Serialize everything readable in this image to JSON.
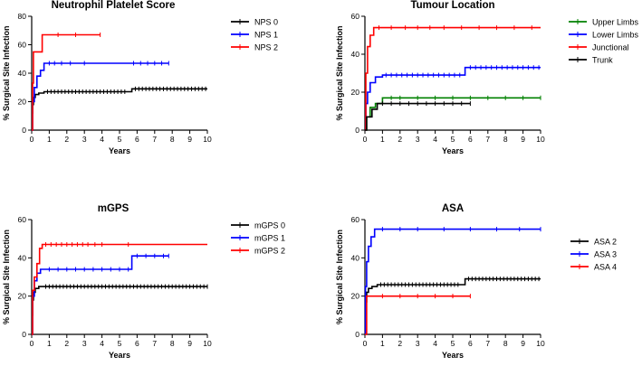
{
  "chart_data": [
    {
      "type": "line",
      "title": "Neutrophil Platelet Score",
      "xlabel": "Years",
      "ylabel": "% Surgical Site Infection",
      "xlim": [
        0,
        10
      ],
      "ylim": [
        0,
        80
      ],
      "xticks": [
        0,
        1,
        2,
        3,
        4,
        5,
        6,
        7,
        8,
        9,
        10
      ],
      "yticks": [
        0,
        20,
        40,
        60,
        80
      ],
      "legend": "right",
      "series": [
        {
          "name": "NPS 0",
          "color": "#000000",
          "steps": [
            [
              0,
              0
            ],
            [
              0.02,
              12
            ],
            [
              0.05,
              18
            ],
            [
              0.1,
              23
            ],
            [
              0.2,
              25
            ],
            [
              0.4,
              26
            ],
            [
              0.7,
              27
            ],
            [
              5.6,
              27
            ],
            [
              5.7,
              29
            ],
            [
              10,
              29
            ]
          ],
          "censored": [
            0.9,
            1.1,
            1.3,
            1.5,
            1.7,
            1.9,
            2.1,
            2.3,
            2.5,
            2.7,
            2.9,
            3.1,
            3.3,
            3.5,
            3.7,
            3.9,
            4.1,
            4.3,
            4.5,
            4.7,
            4.9,
            5.1,
            5.3,
            5.9,
            6.1,
            6.3,
            6.5,
            6.7,
            6.9,
            7.1,
            7.3,
            7.5,
            7.7,
            7.9,
            8.1,
            8.3,
            8.5,
            8.7,
            8.9,
            9.1,
            9.3,
            9.5,
            9.7,
            9.9
          ]
        },
        {
          "name": "NPS 1",
          "color": "#0000ff",
          "steps": [
            [
              0,
              0
            ],
            [
              0.05,
              20
            ],
            [
              0.15,
              30
            ],
            [
              0.3,
              38
            ],
            [
              0.5,
              42
            ],
            [
              0.7,
              47
            ],
            [
              7.8,
              47
            ]
          ],
          "censored": [
            1.0,
            1.3,
            1.7,
            2.2,
            3.0,
            5.8,
            6.2,
            6.6,
            7.0,
            7.4,
            7.8
          ]
        },
        {
          "name": "NPS 2",
          "color": "#ff0000",
          "steps": [
            [
              0,
              0
            ],
            [
              0.05,
              33
            ],
            [
              0.1,
              55
            ],
            [
              0.55,
              55
            ],
            [
              0.6,
              67
            ],
            [
              3.9,
              67
            ]
          ],
          "censored": [
            1.5,
            2.5,
            3.9
          ]
        }
      ]
    },
    {
      "type": "line",
      "title": "Tumour Location",
      "xlabel": "Years",
      "ylabel": "% Surgical Site Infection",
      "xlim": [
        0,
        10
      ],
      "ylim": [
        0,
        60
      ],
      "xticks": [
        0,
        1,
        2,
        3,
        4,
        5,
        6,
        7,
        8,
        9,
        10
      ],
      "yticks": [
        0,
        20,
        40,
        60
      ],
      "legend": "right",
      "series": [
        {
          "name": "Upper Limbs",
          "color": "#008000",
          "steps": [
            [
              0,
              0
            ],
            [
              0.1,
              7
            ],
            [
              0.3,
              12
            ],
            [
              0.6,
              14
            ],
            [
              1.0,
              17
            ],
            [
              10,
              17
            ]
          ],
          "censored": [
            1.5,
            2.0,
            3.0,
            4.0,
            5.0,
            6.0,
            7.0,
            8.0,
            9.0,
            10.0
          ]
        },
        {
          "name": "Lower Limbs",
          "color": "#0000ff",
          "steps": [
            [
              0,
              0
            ],
            [
              0.05,
              14
            ],
            [
              0.15,
              20
            ],
            [
              0.3,
              25
            ],
            [
              0.6,
              28
            ],
            [
              1.0,
              29
            ],
            [
              5.6,
              29
            ],
            [
              5.7,
              33
            ],
            [
              10,
              33
            ]
          ],
          "censored": [
            1.2,
            1.5,
            1.8,
            2.1,
            2.4,
            2.7,
            3.0,
            3.3,
            3.6,
            3.9,
            4.2,
            4.5,
            4.8,
            5.1,
            5.4,
            6.0,
            6.3,
            6.6,
            6.9,
            7.2,
            7.5,
            7.8,
            8.1,
            8.4,
            8.7,
            9.0,
            9.3,
            9.6,
            9.9
          ]
        },
        {
          "name": "Junctional",
          "color": "#ff0000",
          "steps": [
            [
              0,
              0
            ],
            [
              0.05,
              30
            ],
            [
              0.15,
              44
            ],
            [
              0.3,
              50
            ],
            [
              0.5,
              54
            ],
            [
              10,
              54
            ]
          ],
          "censored": [
            0.8,
            1.5,
            2.3,
            3.0,
            3.7,
            4.5,
            5.5,
            6.5,
            7.5,
            8.5,
            9.5
          ]
        },
        {
          "name": "Trunk",
          "color": "#000000",
          "steps": [
            [
              0,
              0
            ],
            [
              0.1,
              7
            ],
            [
              0.4,
              11
            ],
            [
              0.7,
              14
            ],
            [
              6.0,
              14
            ]
          ],
          "censored": [
            1.0,
            1.5,
            2.0,
            2.5,
            3.0,
            3.5,
            4.0,
            4.5,
            5.0,
            5.5,
            6.0
          ]
        }
      ]
    },
    {
      "type": "line",
      "title": "mGPS",
      "xlabel": "Years",
      "ylabel": "% Surgical Site Infection",
      "xlim": [
        0,
        10
      ],
      "ylim": [
        0,
        60
      ],
      "xticks": [
        0,
        1,
        2,
        3,
        4,
        5,
        6,
        7,
        8,
        9,
        10
      ],
      "yticks": [
        0,
        20,
        40,
        60
      ],
      "legend": "right",
      "series": [
        {
          "name": "mGPS 0",
          "color": "#000000",
          "steps": [
            [
              0,
              0
            ],
            [
              0.02,
              10
            ],
            [
              0.05,
              18
            ],
            [
              0.1,
              22
            ],
            [
              0.2,
              24
            ],
            [
              0.4,
              25
            ],
            [
              10,
              25
            ]
          ],
          "censored": [
            0.8,
            1.0,
            1.2,
            1.4,
            1.6,
            1.8,
            2.0,
            2.2,
            2.4,
            2.6,
            2.8,
            3.0,
            3.2,
            3.4,
            3.6,
            3.8,
            4.0,
            4.2,
            4.4,
            4.6,
            4.8,
            5.0,
            5.2,
            5.4,
            5.6,
            5.8,
            6.0,
            6.2,
            6.4,
            6.6,
            6.8,
            7.0,
            7.2,
            7.4,
            7.6,
            7.8,
            8.0,
            8.2,
            8.4,
            8.6,
            8.8,
            9.0,
            9.2,
            9.4,
            9.6,
            9.8,
            10.0
          ]
        },
        {
          "name": "mGPS 1",
          "color": "#0000ff",
          "steps": [
            [
              0,
              0
            ],
            [
              0.05,
              20
            ],
            [
              0.15,
              28
            ],
            [
              0.3,
              32
            ],
            [
              0.5,
              34
            ],
            [
              5.6,
              34
            ],
            [
              5.7,
              41
            ],
            [
              7.8,
              41
            ]
          ],
          "censored": [
            1.0,
            1.5,
            2.0,
            2.5,
            3.0,
            3.5,
            4.0,
            4.5,
            5.0,
            5.5,
            6.0,
            6.5,
            7.0,
            7.5,
            7.8
          ]
        },
        {
          "name": "mGPS 2",
          "color": "#ff0000",
          "steps": [
            [
              0,
              0
            ],
            [
              0.05,
              23
            ],
            [
              0.15,
              30
            ],
            [
              0.3,
              37
            ],
            [
              0.45,
              45
            ],
            [
              0.6,
              47
            ],
            [
              10,
              47
            ]
          ],
          "censored": [
            0.8,
            1.1,
            1.4,
            1.7,
            2.0,
            2.3,
            2.6,
            2.9,
            3.2,
            3.6,
            4.0,
            5.5
          ]
        }
      ]
    },
    {
      "type": "line",
      "title": "ASA",
      "xlabel": "Years",
      "ylabel": "% Surgical Site Infection",
      "xlim": [
        0,
        10
      ],
      "ylim": [
        0,
        60
      ],
      "xticks": [
        0,
        1,
        2,
        3,
        4,
        5,
        6,
        7,
        8,
        9,
        10
      ],
      "yticks": [
        0,
        20,
        40,
        60
      ],
      "legend": "right",
      "series": [
        {
          "name": "ASA 2",
          "color": "#000000",
          "steps": [
            [
              0,
              0
            ],
            [
              0.02,
              10
            ],
            [
              0.05,
              17
            ],
            [
              0.1,
              22
            ],
            [
              0.2,
              24
            ],
            [
              0.4,
              25
            ],
            [
              0.7,
              26
            ],
            [
              5.6,
              26
            ],
            [
              5.7,
              29
            ],
            [
              10,
              29
            ]
          ],
          "censored": [
            0.9,
            1.1,
            1.3,
            1.5,
            1.7,
            1.9,
            2.1,
            2.3,
            2.5,
            2.7,
            2.9,
            3.1,
            3.3,
            3.5,
            3.7,
            3.9,
            4.1,
            4.3,
            4.5,
            4.7,
            4.9,
            5.1,
            5.3,
            5.9,
            6.1,
            6.3,
            6.5,
            6.7,
            6.9,
            7.1,
            7.3,
            7.5,
            7.7,
            7.9,
            8.1,
            8.3,
            8.5,
            8.7,
            8.9,
            9.1,
            9.3,
            9.5,
            9.7,
            9.9
          ]
        },
        {
          "name": "ASA 3",
          "color": "#0000ff",
          "steps": [
            [
              0,
              0
            ],
            [
              0.03,
              25
            ],
            [
              0.1,
              38
            ],
            [
              0.2,
              46
            ],
            [
              0.35,
              51
            ],
            [
              0.55,
              55
            ],
            [
              10,
              55
            ]
          ],
          "censored": [
            1.0,
            2.0,
            3.0,
            4.5,
            6.0,
            7.5,
            8.8,
            10.0
          ]
        },
        {
          "name": "ASA 4",
          "color": "#ff0000",
          "steps": [
            [
              0,
              0
            ],
            [
              0.1,
              20
            ],
            [
              6.0,
              20
            ]
          ],
          "censored": [
            1.0,
            2.0,
            3.0,
            4.0,
            5.0,
            6.0
          ]
        }
      ]
    }
  ]
}
